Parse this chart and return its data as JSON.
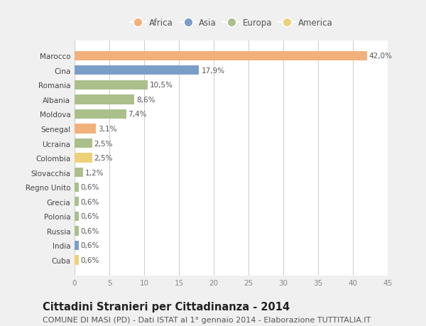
{
  "categories": [
    "Marocco",
    "Cina",
    "Romania",
    "Albania",
    "Moldova",
    "Senegal",
    "Ucraina",
    "Colombia",
    "Slovacchia",
    "Regno Unito",
    "Grecia",
    "Polonia",
    "Russia",
    "India",
    "Cuba"
  ],
  "values": [
    42.0,
    17.9,
    10.5,
    8.6,
    7.4,
    3.1,
    2.5,
    2.5,
    1.2,
    0.6,
    0.6,
    0.6,
    0.6,
    0.6,
    0.6
  ],
  "labels": [
    "42,0%",
    "17,9%",
    "10,5%",
    "8,6%",
    "7,4%",
    "3,1%",
    "2,5%",
    "2,5%",
    "1,2%",
    "0,6%",
    "0,6%",
    "0,6%",
    "0,6%",
    "0,6%",
    "0,6%"
  ],
  "continent": [
    "Africa",
    "Asia",
    "Europa",
    "Europa",
    "Europa",
    "Africa",
    "Europa",
    "America",
    "Europa",
    "Europa",
    "Europa",
    "Europa",
    "Europa",
    "Asia",
    "America"
  ],
  "colors": {
    "Africa": "#F2B07B",
    "Asia": "#7B9EC9",
    "Europa": "#AABF8A",
    "America": "#EDD17A"
  },
  "legend_order": [
    "Africa",
    "Asia",
    "Europa",
    "America"
  ],
  "title": "Cittadini Stranieri per Cittadinanza - 2014",
  "subtitle": "COMUNE DI MASI (PD) - Dati ISTAT al 1° gennaio 2014 - Elaborazione TUTTITALIA.IT",
  "xlim": [
    0,
    45
  ],
  "xticks": [
    0,
    5,
    10,
    15,
    20,
    25,
    30,
    35,
    40,
    45
  ],
  "background_color": "#f0f0f0",
  "plot_background": "#ffffff",
  "bar_height": 0.65,
  "title_fontsize": 10.5,
  "subtitle_fontsize": 8,
  "label_fontsize": 7.5,
  "tick_fontsize": 7.5,
  "legend_fontsize": 8.5
}
